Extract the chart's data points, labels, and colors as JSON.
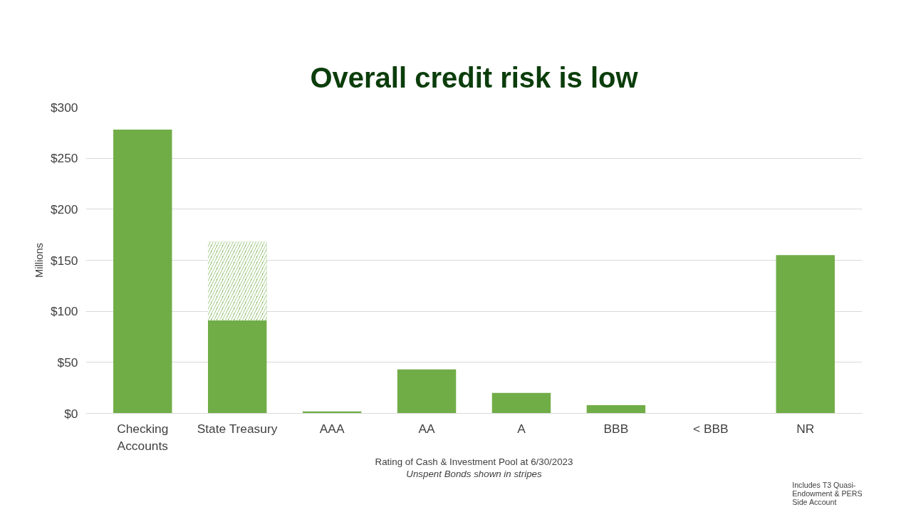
{
  "chart_data": {
    "type": "bar",
    "title": "Overall credit risk is low",
    "ylabel": "Millions",
    "categories": [
      "Checking Accounts",
      "State Treasury",
      "AAA",
      "AA",
      "A",
      "BBB",
      "< BBB",
      "NR"
    ],
    "stacked": true,
    "series": [
      {
        "color": "#70ad47",
        "values": [
          278,
          91,
          2,
          43,
          20,
          8,
          0,
          155
        ]
      },
      {
        "color": "#70ad47",
        "values": [
          0,
          77,
          0,
          0,
          0,
          0,
          0,
          0
        ]
      }
    ],
    "ylim": [
      0,
      300
    ],
    "yticks": [
      {
        "value": 0,
        "label": "$0"
      },
      {
        "value": 50,
        "label": "$50"
      },
      {
        "value": 100,
        "label": "$100"
      },
      {
        "value": 150,
        "label": "$150"
      },
      {
        "value": 200,
        "label": "$200"
      },
      {
        "value": 250,
        "label": "$250"
      },
      {
        "value": 300,
        "label": "$300"
      }
    ],
    "grid": "y",
    "annotations": [
      "Rating of Cash & Investment Pool at 6/30/2023",
      "Unspent Bonds shown in stripes",
      "Includes T3 Quasi-Endowment & PERS Side Account"
    ]
  }
}
